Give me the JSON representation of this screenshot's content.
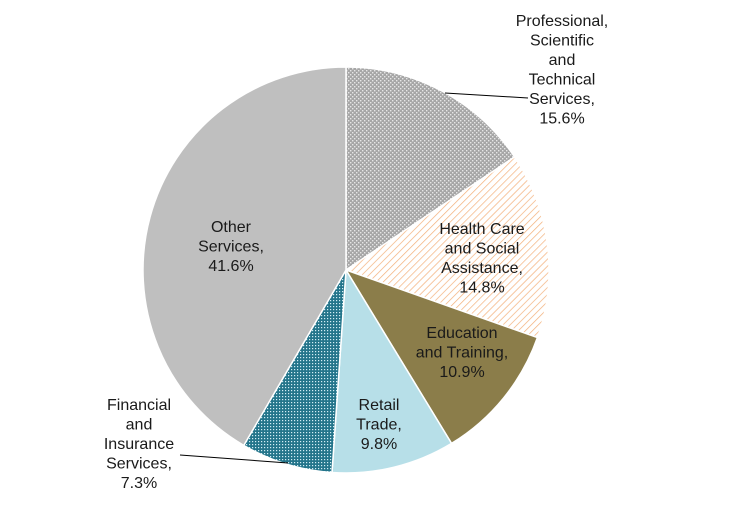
{
  "chart_data": {
    "type": "pie",
    "title": "",
    "series": [
      {
        "slices": [
          {
            "name": "Professional, Scientific and Technical Services",
            "value": 15.6,
            "label": "Professional, Scientific and Technical Services, 15.6%",
            "color": "#9e9e9e",
            "pattern": "dots"
          },
          {
            "name": "Health Care and Social Assistance",
            "value": 14.8,
            "label": "Health Care and Social Assistance, 14.8%",
            "color": "#f4a460",
            "pattern": "diagonal-hatch"
          },
          {
            "name": "Education and Training",
            "value": 10.9,
            "label": "Education and Training, 10.9%",
            "color": "#8b7d4a",
            "pattern": "solid"
          },
          {
            "name": "Retail Trade",
            "value": 9.8,
            "label": "Retail Trade, 9.8%",
            "color": "#b7dfe8",
            "pattern": "solid"
          },
          {
            "name": "Financial and Insurance Services",
            "value": 7.3,
            "label": "Financial and Insurance Services, 7.3%",
            "color": "#1f6f86",
            "pattern": "fine-dots"
          },
          {
            "name": "Other Services",
            "value": 41.6,
            "label": "Other Services, 41.6%",
            "color": "#bfbfbf",
            "pattern": "solid"
          }
        ]
      }
    ],
    "start_angle": "12 o'clock",
    "direction": "clockwise",
    "legend": "none"
  }
}
